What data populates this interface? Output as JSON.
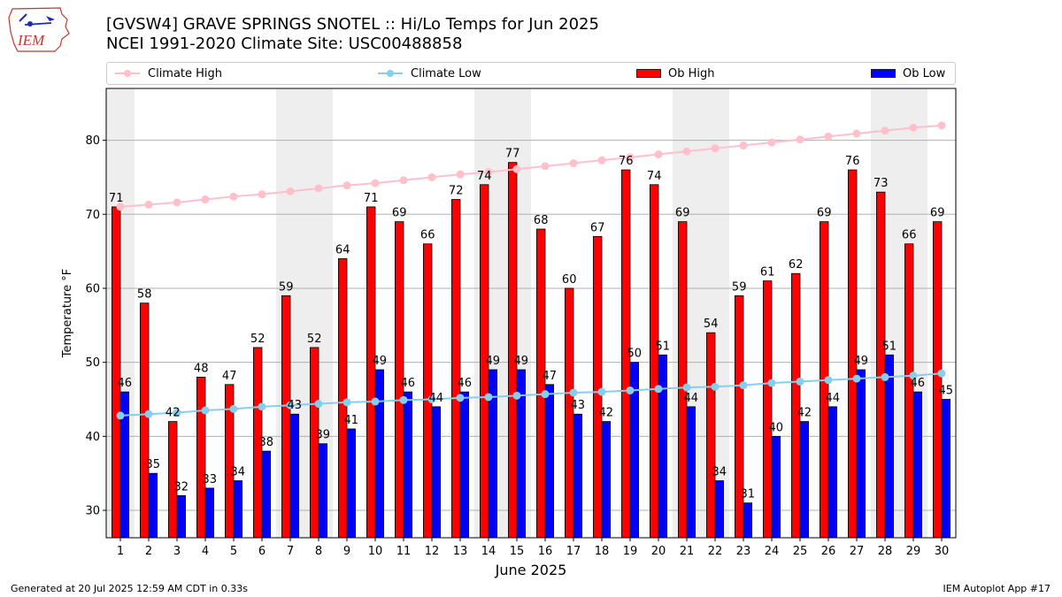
{
  "header": {
    "title_line1": "[GVSW4] GRAVE SPRINGS SNOTEL :: Hi/Lo Temps for Jun 2025",
    "title_line2": "NCEI 1991-2020 Climate Site: USC00488858",
    "logo_text": "IEM"
  },
  "legend": {
    "climate_high": "Climate High",
    "climate_low": "Climate Low",
    "ob_high": "Ob High",
    "ob_low": "Ob Low"
  },
  "footer": {
    "left": "Generated at 20 Jul 2025 12:59 AM CDT in 0.33s",
    "right": "IEM Autoplot App #17"
  },
  "colors": {
    "ob_high": "#ff0000",
    "ob_low": "#0000ff",
    "climate_high": "#ffc0cb",
    "climate_low": "#87ceeb",
    "weekend_shade": "#eeeeee",
    "grid": "#b0b0b0"
  },
  "chart_data": {
    "type": "bar",
    "xlabel": "June 2025",
    "ylabel": "Temperature °F",
    "x": [
      1,
      2,
      3,
      4,
      5,
      6,
      7,
      8,
      9,
      10,
      11,
      12,
      13,
      14,
      15,
      16,
      17,
      18,
      19,
      20,
      21,
      22,
      23,
      24,
      25,
      26,
      27,
      28,
      29,
      30
    ],
    "ylim": [
      26.3,
      87
    ],
    "yticks": [
      30,
      40,
      50,
      60,
      70,
      80
    ],
    "grid": true,
    "legend_position": "top",
    "shaded_days": [
      1,
      7,
      8,
      14,
      15,
      21,
      22,
      28,
      29
    ],
    "series": [
      {
        "name": "Ob High",
        "kind": "bar",
        "values": [
          71,
          58,
          42,
          48,
          47,
          52,
          59,
          52,
          64,
          71,
          69,
          66,
          72,
          74,
          77,
          68,
          60,
          67,
          76,
          74,
          69,
          54,
          59,
          61,
          62,
          69,
          76,
          73,
          66,
          69
        ]
      },
      {
        "name": "Ob Low",
        "kind": "bar",
        "values": [
          46,
          35,
          32,
          33,
          34,
          38,
          43,
          39,
          41,
          49,
          46,
          44,
          46,
          49,
          49,
          47,
          43,
          42,
          50,
          51,
          44,
          34,
          31,
          40,
          42,
          44,
          49,
          51,
          46,
          45
        ]
      },
      {
        "name": "Climate High",
        "kind": "line",
        "values": [
          71.0,
          71.3,
          71.6,
          72.0,
          72.4,
          72.7,
          73.1,
          73.5,
          73.9,
          74.2,
          74.6,
          75.0,
          75.4,
          75.7,
          76.1,
          76.5,
          76.9,
          77.3,
          77.7,
          78.1,
          78.5,
          78.9,
          79.3,
          79.7,
          80.1,
          80.5,
          80.9,
          81.3,
          81.7,
          82.0
        ]
      },
      {
        "name": "Climate Low",
        "kind": "line",
        "values": [
          42.8,
          43.0,
          43.2,
          43.5,
          43.7,
          44.0,
          44.2,
          44.4,
          44.6,
          44.7,
          44.9,
          45.0,
          45.2,
          45.3,
          45.5,
          45.7,
          45.9,
          46.0,
          46.2,
          46.4,
          46.6,
          46.7,
          46.9,
          47.2,
          47.4,
          47.6,
          47.8,
          48.0,
          48.2,
          48.5
        ]
      }
    ]
  }
}
